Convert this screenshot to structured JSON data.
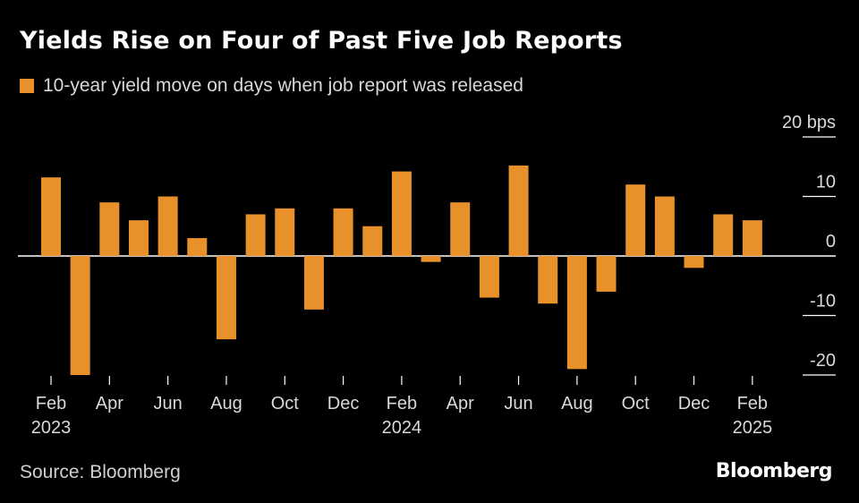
{
  "title": "Yields Rise on Four of Past Five Job Reports",
  "legend": {
    "label": "10-year yield move on days when job report was released"
  },
  "source": "Source: Bloomberg",
  "logo": "Bloomberg",
  "colors": {
    "bar": "#e8912a",
    "background": "#000000",
    "axis": "#ffffff"
  },
  "chart_data": {
    "type": "bar",
    "title": "Yields Rise on Four of Past Five Job Reports",
    "ylabel": "bps",
    "ylim": [
      -20,
      20
    ],
    "yticks": [
      20,
      10,
      0,
      -10,
      -20
    ],
    "ytick_labels": [
      "20 bps",
      "10",
      "0",
      "-10",
      "-20"
    ],
    "categories": [
      "Feb 2023",
      "Mar 2023",
      "Apr 2023",
      "May 2023",
      "Jun 2023",
      "Jul 2023",
      "Aug 2023",
      "Sep 2023",
      "Oct 2023",
      "Nov 2023",
      "Dec 2023",
      "Jan 2024",
      "Feb 2024",
      "Mar 2024",
      "Apr 2024",
      "May 2024",
      "Jun 2024",
      "Jul 2024",
      "Aug 2024",
      "Sep 2024",
      "Oct 2024",
      "Nov 2024",
      "Dec 2024",
      "Jan 2025",
      "Feb 2025"
    ],
    "values": [
      13.2,
      -20,
      9,
      6,
      10,
      3,
      -14,
      7,
      8,
      -9,
      8,
      5,
      14.2,
      -1,
      9,
      -7,
      15.2,
      -8,
      -19,
      -6,
      12,
      10,
      -2,
      7,
      6
    ],
    "xtick_labels": [
      {
        "index": 0,
        "month": "Feb",
        "year": "2023"
      },
      {
        "index": 2,
        "month": "Apr",
        "year": ""
      },
      {
        "index": 4,
        "month": "Jun",
        "year": ""
      },
      {
        "index": 6,
        "month": "Aug",
        "year": ""
      },
      {
        "index": 8,
        "month": "Oct",
        "year": ""
      },
      {
        "index": 10,
        "month": "Dec",
        "year": ""
      },
      {
        "index": 12,
        "month": "Feb",
        "year": "2024"
      },
      {
        "index": 14,
        "month": "Apr",
        "year": ""
      },
      {
        "index": 16,
        "month": "Jun",
        "year": ""
      },
      {
        "index": 18,
        "month": "Aug",
        "year": ""
      },
      {
        "index": 20,
        "month": "Oct",
        "year": ""
      },
      {
        "index": 22,
        "month": "Dec",
        "year": ""
      },
      {
        "index": 24,
        "month": "Feb",
        "year": "2025"
      }
    ]
  }
}
